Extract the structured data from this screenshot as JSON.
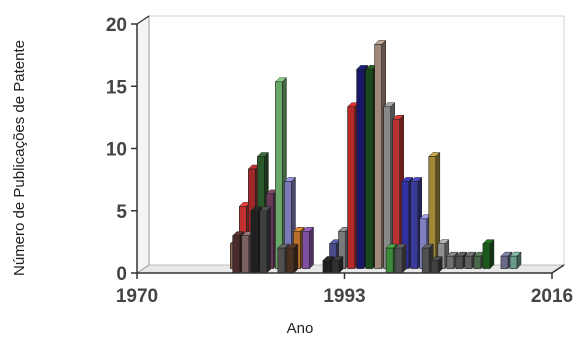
{
  "chart_data": {
    "type": "bar",
    "title": "",
    "xlabel": "Ano",
    "ylabel": "Número de Publicações de Patente",
    "ylim": [
      0,
      20
    ],
    "yticks": [
      0,
      5,
      10,
      15,
      20
    ],
    "xlim": [
      1970,
      2016
    ],
    "xticks": [
      1970,
      1993,
      2016
    ],
    "grid": true,
    "bars": [
      {
        "year": 1980,
        "back": 2,
        "front": 0,
        "back_color": "#8a6a55",
        "front_color": "#3a2a22"
      },
      {
        "year": 1981,
        "back": 5,
        "front": 3,
        "back_color": "#c03030",
        "front_color": "#4a2a2a"
      },
      {
        "year": 1982,
        "back": 8,
        "front": 3,
        "back_color": "#a02828",
        "front_color": "#7a6060"
      },
      {
        "year": 1983,
        "back": 9,
        "front": 5,
        "back_color": "#2a5a2a",
        "front_color": "#202020"
      },
      {
        "year": 1984,
        "back": 6,
        "front": 5,
        "back_color": "#6a3a5a",
        "front_color": "#404040"
      },
      {
        "year": 1985,
        "back": 15,
        "front": 0,
        "back_color": "#6aa86a",
        "front_color": "#3a3a3a"
      },
      {
        "year": 1986,
        "back": 7,
        "front": 2,
        "back_color": "#7a7ab8",
        "front_color": "#505050"
      },
      {
        "year": 1987,
        "back": 3,
        "front": 2,
        "back_color": "#b87028",
        "front_color": "#4a3020"
      },
      {
        "year": 1988,
        "back": 3,
        "front": 0,
        "back_color": "#8050a0",
        "front_color": "#303030"
      },
      {
        "year": 1989,
        "back": 0,
        "front": 0,
        "back_color": "#6a6a6a",
        "front_color": "#303030"
      },
      {
        "year": 1990,
        "back": 0,
        "front": 0,
        "back_color": "#6a6a6a",
        "front_color": "#303030"
      },
      {
        "year": 1991,
        "back": 2,
        "front": 1,
        "back_color": "#4a4a8a",
        "front_color": "#202020"
      },
      {
        "year": 1992,
        "back": 3,
        "front": 1,
        "back_color": "#7a7a7a",
        "front_color": "#303030"
      },
      {
        "year": 1993,
        "back": 13,
        "front": 0,
        "back_color": "#b82828",
        "front_color": "#5a1010"
      },
      {
        "year": 1994,
        "back": 16,
        "front": 0,
        "back_color": "#18186a",
        "front_color": "#101030"
      },
      {
        "year": 1995,
        "back": 16,
        "front": 0,
        "back_color": "#1a4a1a",
        "front_color": "#0a2a0a"
      },
      {
        "year": 1996,
        "back": 18,
        "front": 0,
        "back_color": "#a08878",
        "front_color": "#403028"
      },
      {
        "year": 1997,
        "back": 13,
        "front": 0,
        "back_color": "#888888",
        "front_color": "#404040"
      },
      {
        "year": 1998,
        "back": 12,
        "front": 2,
        "back_color": "#b83030",
        "front_color": "#3a8a3a"
      },
      {
        "year": 1999,
        "back": 7,
        "front": 2,
        "back_color": "#3030a0",
        "front_color": "#505050"
      },
      {
        "year": 2000,
        "back": 7,
        "front": 0,
        "back_color": "#3a3a9a",
        "front_color": "#202020"
      },
      {
        "year": 2001,
        "back": 4,
        "front": 0,
        "back_color": "#8080c0",
        "front_color": "#404040"
      },
      {
        "year": 2002,
        "back": 9,
        "front": 2,
        "back_color": "#a08838",
        "front_color": "#505050"
      },
      {
        "year": 2003,
        "back": 2,
        "front": 1,
        "back_color": "#909090",
        "front_color": "#404040"
      },
      {
        "year": 2004,
        "back": 1,
        "front": 0,
        "back_color": "#707070",
        "front_color": "#303030"
      },
      {
        "year": 2005,
        "back": 1,
        "front": 0,
        "back_color": "#505050",
        "front_color": "#202020"
      },
      {
        "year": 2006,
        "back": 1,
        "front": 0,
        "back_color": "#606060",
        "front_color": "#303030"
      },
      {
        "year": 2007,
        "back": 1,
        "front": 0,
        "back_color": "#4a6a4a",
        "front_color": "#202020"
      },
      {
        "year": 2008,
        "back": 2,
        "front": 0,
        "back_color": "#1a5a1a",
        "front_color": "#0a2a0a"
      },
      {
        "year": 2009,
        "back": 0,
        "front": 0,
        "back_color": "#707070",
        "front_color": "#303030"
      },
      {
        "year": 2010,
        "back": 1,
        "front": 0,
        "back_color": "#6a6a8a",
        "front_color": "#303030"
      },
      {
        "year": 2011,
        "back": 1,
        "front": 0,
        "back_color": "#6a9a8a",
        "front_color": "#303030"
      }
    ]
  }
}
